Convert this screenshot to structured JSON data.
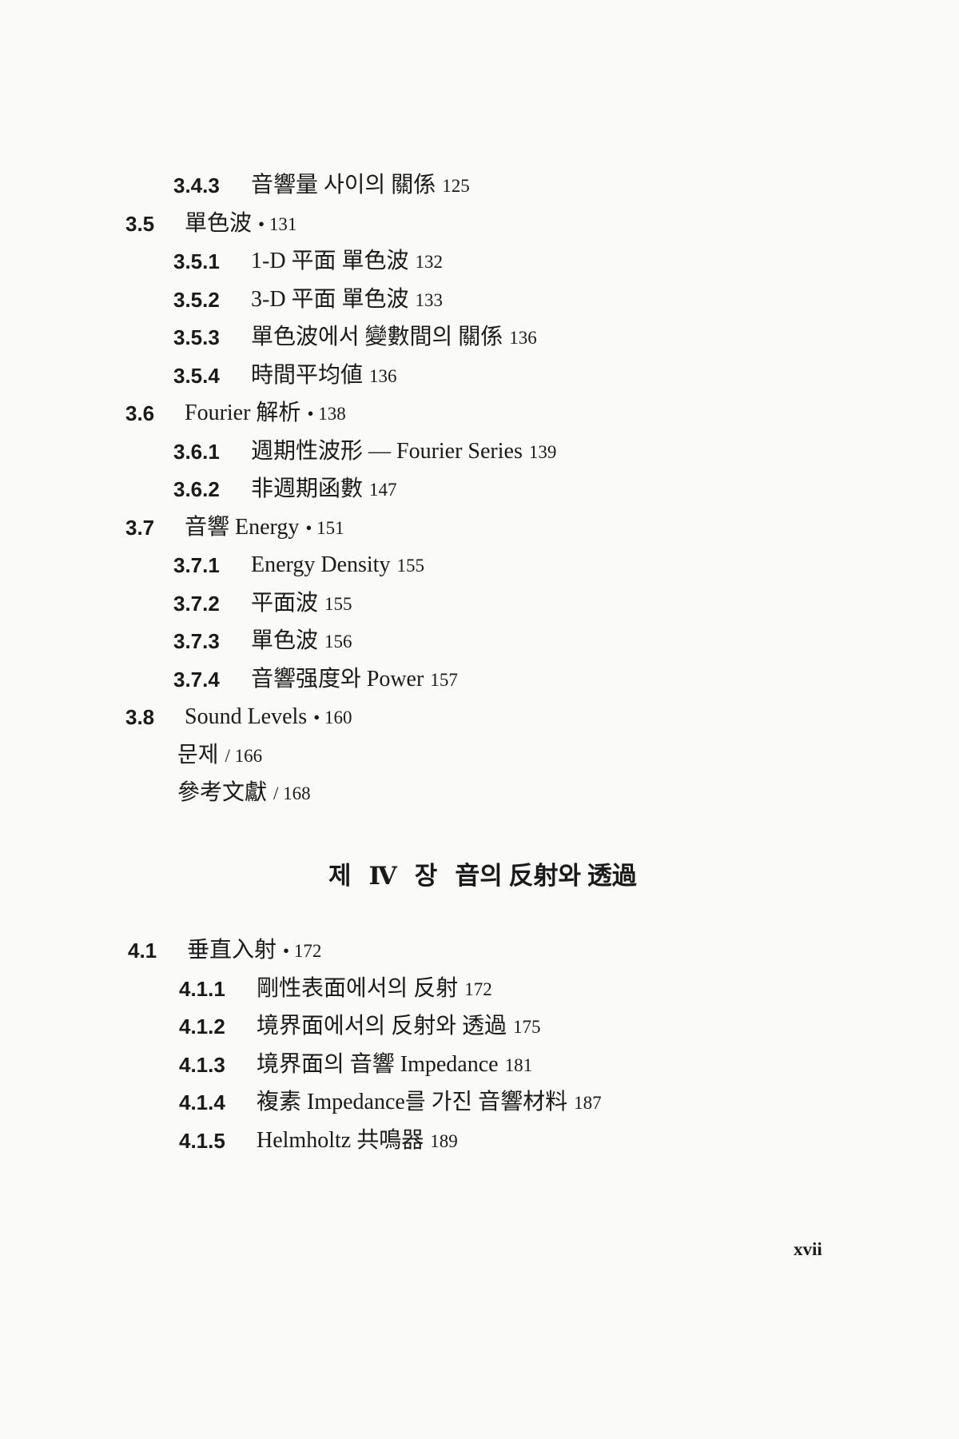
{
  "entries_part1": [
    {
      "num": "3.4.3",
      "title": "音響量 사이의 關係",
      "page": "125",
      "level": 2
    },
    {
      "num": "3.5",
      "title": "單色波",
      "page": "• 131",
      "level": 1
    },
    {
      "num": "3.5.1",
      "title": "1-D 平面 單色波",
      "page": "132",
      "level": 2
    },
    {
      "num": "3.5.2",
      "title": "3-D 平面 單色波",
      "page": "133",
      "level": 2
    },
    {
      "num": "3.5.3",
      "title": "單色波에서 變數間의 關係",
      "page": "136",
      "level": 2
    },
    {
      "num": "3.5.4",
      "title": "時間平均値",
      "page": "136",
      "level": 2
    },
    {
      "num": "3.6",
      "title": "Fourier 解析",
      "page": "• 138",
      "level": 1
    },
    {
      "num": "3.6.1",
      "title": "週期性波形 — Fourier Series",
      "page": "139",
      "level": 2
    },
    {
      "num": "3.6.2",
      "title": "非週期函數",
      "page": "147",
      "level": 2
    },
    {
      "num": "3.7",
      "title": "音響 Energy",
      "page": "• 151",
      "level": 1
    },
    {
      "num": "3.7.1",
      "title": "Energy Density",
      "page": "155",
      "level": 2
    },
    {
      "num": "3.7.2",
      "title": "平面波",
      "page": "155",
      "level": 2
    },
    {
      "num": "3.7.3",
      "title": "單色波",
      "page": "156",
      "level": 2
    },
    {
      "num": "3.7.4",
      "title": "音響强度와 Power",
      "page": "157",
      "level": 2
    },
    {
      "num": "3.8",
      "title": "Sound Levels",
      "page": "• 160",
      "level": 1
    },
    {
      "num": "",
      "title": "문제",
      "page": "/ 166",
      "level": 3
    },
    {
      "num": "",
      "title": "參考文獻",
      "page": "/ 168",
      "level": 3
    }
  ],
  "chapter": {
    "prefix": "제",
    "numeral": "Ⅳ",
    "suffix": "장",
    "title": "音의 反射와 透過"
  },
  "entries_part2": [
    {
      "num": "4.1",
      "title": "垂直入射",
      "page": "• 172",
      "level": 1
    },
    {
      "num": "4.1.1",
      "title": "剛性表面에서의 反射",
      "page": "172",
      "level": 2
    },
    {
      "num": "4.1.2",
      "title": "境界面에서의 反射와 透過",
      "page": "175",
      "level": 2
    },
    {
      "num": "4.1.3",
      "title": "境界面의 音響 Impedance",
      "page": "181",
      "level": 2
    },
    {
      "num": "4.1.4",
      "title": "複素 Impedance를 가진 音響材料",
      "page": "187",
      "level": 2
    },
    {
      "num": "4.1.5",
      "title": "Helmholtz 共鳴器",
      "page": "189",
      "level": 2
    }
  ],
  "folio": "xvii"
}
